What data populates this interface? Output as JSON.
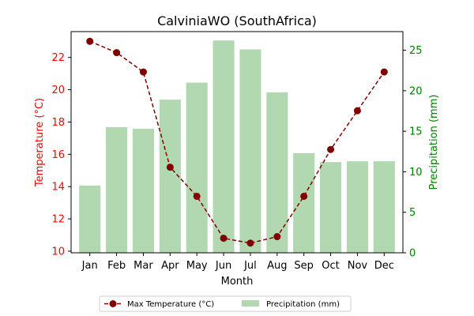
{
  "chart_data": {
    "type": "bar+line",
    "title": "CalviniaWO (SouthAfrica)",
    "xlabel": "Month",
    "categories": [
      "Jan",
      "Feb",
      "Mar",
      "Apr",
      "May",
      "Jun",
      "Jul",
      "Aug",
      "Sep",
      "Oct",
      "Nov",
      "Dec"
    ],
    "series": [
      {
        "name": "Max Temperature (°C)",
        "type": "line",
        "axis": "left",
        "color": "#800000",
        "values": [
          23.0,
          22.3,
          21.1,
          15.2,
          13.4,
          10.8,
          10.5,
          10.9,
          13.4,
          16.3,
          18.7,
          21.1
        ]
      },
      {
        "name": "Precipitation (mm)",
        "type": "bar",
        "axis": "right",
        "color": "#b1d8b1",
        "values": [
          8.3,
          15.5,
          15.3,
          18.9,
          21.0,
          26.2,
          25.1,
          19.8,
          12.3,
          11.2,
          11.3,
          11.3
        ]
      }
    ],
    "y_left": {
      "label": "Temperature (°C)",
      "color": "#ff0000",
      "ylim": [
        9.9,
        23.6
      ],
      "ticks": [
        10,
        12,
        14,
        16,
        18,
        20,
        22
      ]
    },
    "y_right": {
      "label": "Precipitation (mm)",
      "color": "#008000",
      "ylim": [
        0,
        27.3
      ],
      "ticks": [
        0,
        5,
        10,
        15,
        20,
        25
      ]
    },
    "grid": false,
    "legend_position": "bottom-center"
  }
}
